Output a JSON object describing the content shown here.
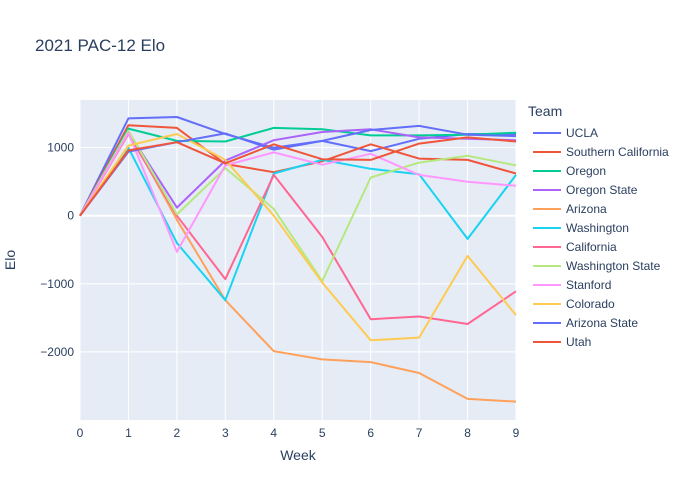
{
  "chart_data": {
    "type": "line",
    "title": "2021 PAC-12 Elo",
    "xlabel": "Week",
    "ylabel": "Elo",
    "legend_title": "Team",
    "legend_position": "right",
    "x": [
      0,
      1,
      2,
      3,
      4,
      5,
      6,
      7,
      8,
      9
    ],
    "xlim": [
      0,
      9
    ],
    "ylim": [
      -3000,
      1700
    ],
    "y_ticks": [
      -2000,
      -1000,
      0,
      1000
    ],
    "y_tick_labels": [
      "−2000",
      "−1000",
      "0",
      "1000"
    ],
    "x_ticks": [
      0,
      1,
      2,
      3,
      4,
      5,
      6,
      7,
      8,
      9
    ],
    "grid": true,
    "plot_bg": "#e5ecf6",
    "series": [
      {
        "name": "UCLA",
        "color": "#636efa",
        "values": [
          0,
          1430,
          1450,
          1200,
          1000,
          1100,
          950,
          1130,
          1200,
          1200
        ]
      },
      {
        "name": "Southern California",
        "color": "#ef553b",
        "values": [
          0,
          1330,
          1290,
          760,
          640,
          800,
          1050,
          840,
          820,
          620
        ]
      },
      {
        "name": "Oregon",
        "color": "#00cc96",
        "values": [
          0,
          1280,
          1100,
          1090,
          1290,
          1270,
          1180,
          1180,
          1190,
          1220
        ]
      },
      {
        "name": "Oregon State",
        "color": "#ab63fa",
        "values": [
          0,
          1230,
          120,
          810,
          1110,
          1230,
          1270,
          1150,
          1130,
          1110
        ]
      },
      {
        "name": "Arizona",
        "color": "#ffa15a",
        "values": [
          0,
          1240,
          -60,
          -1240,
          -1990,
          -2110,
          -2150,
          -2310,
          -2690,
          -2730
        ]
      },
      {
        "name": "Washington",
        "color": "#19d3f3",
        "values": [
          0,
          1000,
          -400,
          -1240,
          620,
          820,
          690,
          610,
          -340,
          600
        ]
      },
      {
        "name": "California",
        "color": "#ff6692",
        "values": [
          0,
          1200,
          0,
          -930,
          600,
          -310,
          -1520,
          -1480,
          -1590,
          -1110
        ]
      },
      {
        "name": "Washington State",
        "color": "#b6e880",
        "values": [
          0,
          1250,
          20,
          700,
          100,
          -960,
          560,
          780,
          880,
          740
        ]
      },
      {
        "name": "Stanford",
        "color": "#ff97ff",
        "values": [
          0,
          1220,
          -530,
          740,
          930,
          750,
          910,
          600,
          500,
          440
        ]
      },
      {
        "name": "Colorado",
        "color": "#fecb52",
        "values": [
          0,
          1030,
          1200,
          820,
          0,
          -980,
          -1830,
          -1790,
          -590,
          -1460
        ]
      },
      {
        "name": "Arizona State",
        "color": "#636efa",
        "values": [
          0,
          940,
          1080,
          1210,
          970,
          1100,
          1260,
          1320,
          1190,
          1170
        ]
      },
      {
        "name": "Utah",
        "color": "#ef553b",
        "values": [
          0,
          960,
          1080,
          770,
          1050,
          830,
          820,
          1060,
          1150,
          1090
        ]
      }
    ]
  }
}
